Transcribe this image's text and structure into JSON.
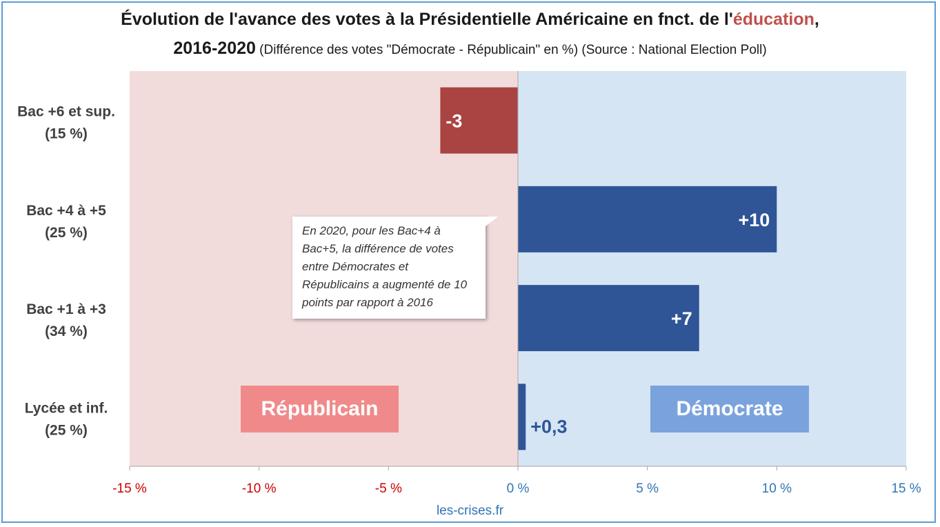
{
  "title": {
    "line1_prefix": "Évolution de l'avance des votes à la Présidentielle Américaine en fnct. de l'",
    "line1_accent": "éducation",
    "line1_suffix": ",",
    "line2_years": "2016-2020",
    "line2_subtitle": " (Différence des votes \"Démocrate - Républicain\" en %) (Source : National Election Poll)"
  },
  "source_footer": "les-crises.fr",
  "callout": "En 2020, pour les Bac+4 à Bac+5, la différence de votes entre Démocrates et Républicains a augmenté de 10 points par rapport à 2016",
  "zone_labels": {
    "republican": "Républicain",
    "democrat": "Démocrate"
  },
  "colors": {
    "republican_zone": "#f2dcdb",
    "democrat_zone": "#d6e5f4",
    "negative_bar": "#a94442",
    "positive_bar": "#2f5597",
    "negative_axis": "#cc0000",
    "positive_axis": "#2e75b6",
    "republican_tag": "#f08a8a",
    "democrat_tag": "#7aa3de"
  },
  "chart_data": {
    "type": "bar",
    "orientation": "horizontal",
    "categories": [
      [
        "Bac +6 et sup.",
        "(15 %)"
      ],
      [
        "Bac +4 à +5",
        "(25 %)"
      ],
      [
        "Bac +1 à +3",
        "(34 %)"
      ],
      [
        "Lycée et inf.",
        "(25 %)"
      ]
    ],
    "values": [
      -3,
      10,
      7,
      0.3
    ],
    "value_labels": [
      "-3",
      "+10",
      "+7",
      "+0,3"
    ],
    "xlim": [
      -15,
      15
    ],
    "x_ticks": [
      -15,
      -10,
      -5,
      0,
      5,
      10,
      15
    ],
    "x_tick_labels": [
      "-15 %",
      "-10 %",
      "-5 %",
      "0 %",
      "5 %",
      "10 %",
      "15 %"
    ]
  }
}
